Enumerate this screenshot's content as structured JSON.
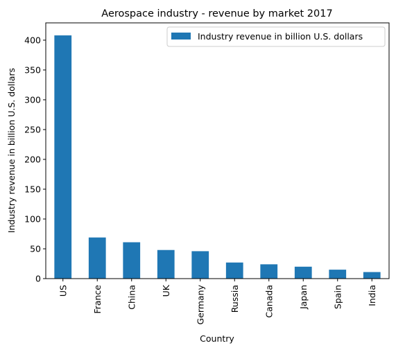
{
  "chart_data": {
    "type": "bar",
    "title": "Aerospace industry - revenue by market 2017",
    "xlabel": "Country",
    "ylabel": "Industry revenue in billion U.S. dollars",
    "categories": [
      "US",
      "France",
      "China",
      "UK",
      "Germany",
      "Russia",
      "Canada",
      "Japan",
      "Spain",
      "India"
    ],
    "series": [
      {
        "name": "Industry revenue in billion U.S. dollars",
        "values": [
          408,
          69,
          61,
          48,
          46,
          27,
          24,
          20,
          15,
          11
        ],
        "color": "#1f77b4"
      }
    ],
    "ylim": [
      0,
      429
    ],
    "yticks": [
      0,
      50,
      100,
      150,
      200,
      250,
      300,
      350,
      400
    ],
    "grid": false,
    "legend_position": "top-right"
  }
}
